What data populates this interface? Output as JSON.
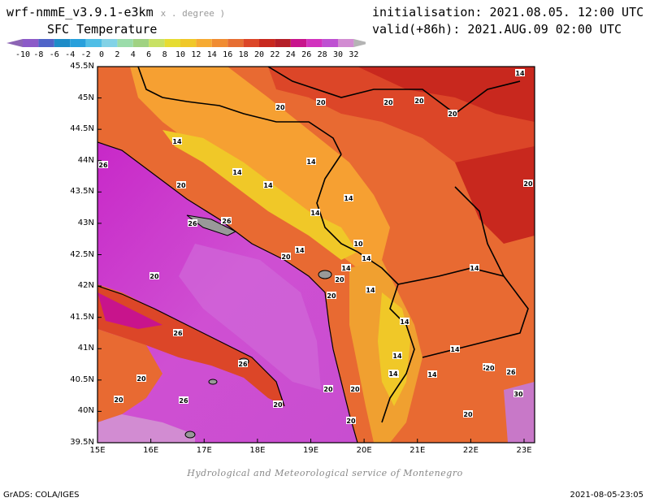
{
  "header": {
    "model": "wrf-nmmE_v3.9.1-e3km",
    "units_note": "x . degree )",
    "variable": "SFC Temperature",
    "init": "initialisation: 2021.08.05. 12:00 UTC",
    "valid": "valid(+86h): 2021.AUG.09 02:00 UTC"
  },
  "colorbar": {
    "labels": [
      "-10",
      "-8",
      "-6",
      "-4",
      "-2",
      "0",
      "2",
      "4",
      "6",
      "8",
      "10",
      "12",
      "14",
      "16",
      "18",
      "20",
      "22",
      "24",
      "26",
      "28",
      "30",
      "32"
    ],
    "colors": [
      "#8c5ac8",
      "#5064c8",
      "#1e8cc8",
      "#28a0dc",
      "#50bee6",
      "#82d2e6",
      "#9bdcaa",
      "#a0d282",
      "#c8e164",
      "#e6dc32",
      "#f0c828",
      "#f6aa32",
      "#f08c32",
      "#e66e32",
      "#dc4628",
      "#c8281e",
      "#b41e28",
      "#c8148c",
      "#d232be",
      "#be50d2",
      "#d28cd2"
    ],
    "end_left": "#8c64b4",
    "end_right": "#b4b4b4"
  },
  "map": {
    "contour_labels": [
      "14",
      "20",
      "20",
      "20",
      "20",
      "20",
      "14",
      "26",
      "14",
      "14",
      "20",
      "14",
      "20",
      "26",
      "26",
      "14",
      "14",
      "14",
      "20",
      "14",
      "10",
      "14",
      "20",
      "20",
      "14",
      "26",
      "14",
      "14",
      "14",
      "26",
      "26",
      "20",
      "14",
      "14",
      "20",
      "20",
      "20",
      "26",
      "20",
      "20",
      "20",
      "26",
      "26",
      "20",
      "30",
      "20",
      "14",
      "20",
      "14"
    ]
  },
  "axes": {
    "lat_labels": [
      "45.5N",
      "45N",
      "44.5N",
      "44N",
      "43.5N",
      "43N",
      "42.5N",
      "42N",
      "41.5N",
      "41N",
      "40.5N",
      "40N",
      "39.5N"
    ],
    "lon_labels": [
      "15E",
      "16E",
      "17E",
      "18E",
      "19E",
      "20E",
      "21E",
      "22E",
      "23E"
    ]
  },
  "footer": {
    "credit": "Hydrological and Meteorological service of Montenegro",
    "grads": "GrADS: COLA/IGES",
    "date": "2021-08-05-23:05"
  }
}
